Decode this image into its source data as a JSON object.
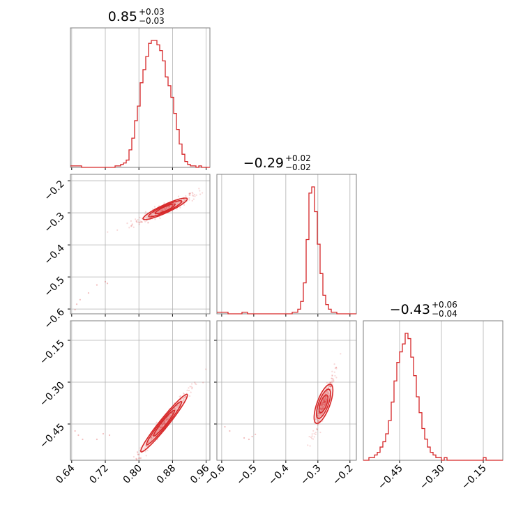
{
  "chart_data": {
    "type": "corner",
    "colors": {
      "main": "#d62728",
      "grid": "#b0b0b0",
      "frame": "#7f7f7f"
    },
    "parameters": [
      {
        "id": "p0",
        "range": [
          0.637,
          0.969
        ],
        "ticks": [
          "0.64",
          "0.72",
          "0.80",
          "0.88",
          "0.96"
        ],
        "tick_values": [
          0.64,
          0.72,
          0.8,
          0.88,
          0.96
        ],
        "title": {
          "median": "0.85",
          "plus": "+0.03",
          "minus": "−0.03"
        }
      },
      {
        "id": "p1",
        "range": [
          -0.615,
          -0.18
        ],
        "ticks": [
          "−0.6",
          "−0.5",
          "−0.4",
          "−0.3",
          "−0.2"
        ],
        "tick_values": [
          -0.6,
          -0.5,
          -0.4,
          -0.3,
          -0.2
        ],
        "title": {
          "median": "−0.29",
          "plus": "+0.02",
          "minus": "−0.02"
        }
      },
      {
        "id": "p2",
        "range": [
          -0.58,
          -0.08
        ],
        "ticks": [
          "−0.45",
          "−0.30",
          "−0.15"
        ],
        "tick_values": [
          -0.45,
          -0.3,
          -0.15
        ],
        "title": {
          "median": "−0.43",
          "plus": "+0.06",
          "minus": "−0.04"
        }
      }
    ],
    "histograms": [
      {
        "param": 0,
        "edges_start": 0.637,
        "bin_width": 0.00664,
        "counts": [
          1,
          1,
          1,
          1,
          0,
          0,
          0,
          0,
          0,
          0,
          0,
          0,
          0,
          0,
          0,
          0,
          1,
          1,
          2,
          3,
          5,
          12,
          20,
          32,
          42,
          58,
          67,
          76,
          85,
          87,
          87,
          84,
          80,
          73,
          62,
          56,
          48,
          37,
          26,
          16,
          9,
          4,
          2,
          1,
          1,
          0,
          1,
          0,
          0,
          0
        ]
      },
      {
        "param": 1,
        "edges_start": -0.615,
        "bin_width": 0.0087,
        "counts": [
          1,
          1,
          1,
          1,
          0,
          0,
          0,
          0,
          0,
          1,
          1,
          0,
          0,
          0,
          0,
          0,
          0,
          0,
          0,
          0,
          0,
          0,
          0,
          0,
          0,
          0,
          0,
          1,
          1,
          3,
          8,
          20,
          48,
          78,
          82,
          66,
          45,
          26,
          12,
          6,
          3,
          1,
          1,
          0,
          0,
          0,
          0,
          0,
          0,
          0
        ]
      },
      {
        "param": 2,
        "edges_start": -0.58,
        "bin_width": 0.01,
        "counts": [
          0,
          0,
          1,
          1,
          2,
          3,
          5,
          7,
          10,
          15,
          22,
          30,
          37,
          41,
          44,
          48,
          46,
          39,
          32,
          24,
          18,
          12,
          8,
          5,
          3,
          2,
          1,
          1,
          0,
          1,
          0,
          0,
          0,
          0,
          0,
          0,
          0,
          0,
          0,
          0,
          0,
          0,
          0,
          1,
          0,
          0,
          0,
          0,
          0,
          0
        ]
      }
    ],
    "pairs": [
      {
        "x": 0,
        "y": 1,
        "slope": 0.6,
        "intercept": -0.805,
        "x_core": [
          0.81,
          0.915
        ],
        "width": 0.0085,
        "outliers": [
          [
            0.648,
            -0.602
          ],
          [
            0.652,
            -0.585
          ],
          [
            0.66,
            -0.571
          ],
          [
            0.68,
            -0.55
          ],
          [
            0.7,
            -0.525
          ],
          [
            0.72,
            -0.515
          ],
          [
            0.725,
            -0.52
          ]
        ]
      },
      {
        "x": 0,
        "y": 2,
        "slope": 1.87,
        "intercept": -2.055,
        "x_core": [
          0.805,
          0.915
        ],
        "width": 0.011,
        "outliers": [
          [
            0.648,
            -0.475
          ],
          [
            0.656,
            -0.49
          ],
          [
            0.666,
            -0.505
          ],
          [
            0.7,
            -0.505
          ],
          [
            0.715,
            -0.485
          ],
          [
            0.73,
            -0.49
          ]
        ]
      },
      {
        "x": 1,
        "y": 2,
        "slope": 3.1,
        "intercept": 0.498,
        "x_core": [
          -0.305,
          -0.26
        ],
        "width": 0.018,
        "outliers": [
          [
            -0.59,
            -0.46
          ],
          [
            -0.575,
            -0.475
          ],
          [
            -0.53,
            -0.5
          ],
          [
            -0.515,
            -0.505
          ],
          [
            -0.505,
            -0.495
          ],
          [
            -0.495,
            -0.487
          ]
        ]
      }
    ]
  }
}
